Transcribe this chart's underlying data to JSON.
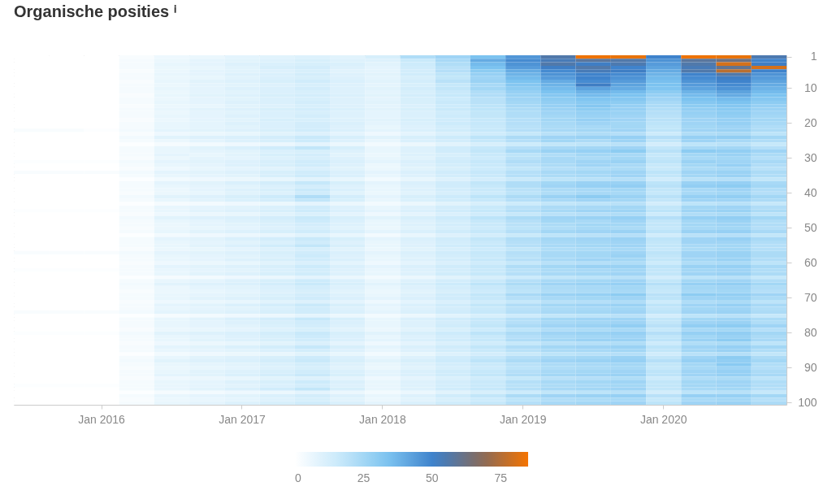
{
  "chart_data": {
    "type": "heatmap",
    "title": "Organische posities ⁱ",
    "categories": [
      null,
      null,
      "Jan 2016",
      null,
      null,
      null,
      "Jan 2017",
      null,
      null,
      null,
      "Jan 2018",
      null,
      null,
      null,
      "Jan 2019",
      null,
      null,
      null,
      "Jan 2020",
      null,
      null,
      null
    ],
    "y_categories": [
      "1",
      null,
      null,
      null,
      null,
      null,
      null,
      null,
      null,
      "10",
      null,
      null,
      null,
      null,
      null,
      null,
      null,
      null,
      null,
      "20",
      null,
      null,
      null,
      null,
      null,
      null,
      null,
      null,
      null,
      "30",
      null,
      null,
      null,
      null,
      null,
      null,
      null,
      null,
      null,
      "40",
      null,
      null,
      null,
      null,
      null,
      null,
      null,
      null,
      null,
      "50",
      null,
      null,
      null,
      null,
      null,
      null,
      null,
      null,
      null,
      "60",
      null,
      null,
      null,
      null,
      null,
      null,
      null,
      null,
      null,
      "70",
      null,
      null,
      null,
      null,
      null,
      null,
      null,
      null,
      null,
      "80",
      null,
      null,
      null,
      null,
      null,
      null,
      null,
      null,
      null,
      "90",
      null,
      null,
      null,
      null,
      null,
      null,
      null,
      null,
      null,
      "100"
    ],
    "clim": [
      0,
      85
    ],
    "cticks": [
      0,
      25,
      50,
      75
    ],
    "colors": [
      "#ffffff",
      "#c6e8fa",
      "#7cc3f0",
      "#3b7fca",
      "#866a5c",
      "#f57400"
    ],
    "cells": [
      [
        0,
        0,
        0,
        2,
        5,
        6,
        8,
        9,
        10,
        9,
        12,
        22,
        26,
        34,
        45,
        56,
        84,
        83,
        50,
        84,
        83,
        55
      ],
      [
        0,
        0,
        0,
        3,
        6,
        8,
        9,
        10,
        12,
        10,
        10,
        16,
        24,
        40,
        48,
        54,
        58,
        56,
        46,
        58,
        62,
        50
      ],
      [
        0,
        0,
        0,
        3,
        7,
        8,
        10,
        11,
        12,
        11,
        9,
        15,
        22,
        36,
        46,
        56,
        52,
        55,
        44,
        56,
        80,
        52
      ],
      [
        0,
        0,
        0,
        3,
        6,
        7,
        9,
        12,
        13,
        10,
        8,
        14,
        20,
        34,
        44,
        52,
        56,
        50,
        42,
        54,
        60,
        80
      ],
      [
        0,
        0,
        0,
        2,
        6,
        8,
        9,
        10,
        12,
        9,
        8,
        13,
        21,
        30,
        40,
        48,
        54,
        52,
        40,
        56,
        76,
        50
      ],
      [
        0,
        0,
        0,
        3,
        7,
        8,
        10,
        11,
        13,
        10,
        9,
        14,
        19,
        28,
        38,
        46,
        50,
        48,
        38,
        50,
        56,
        46
      ],
      [
        0,
        0,
        0,
        3,
        6,
        7,
        9,
        11,
        12,
        10,
        8,
        12,
        18,
        26,
        36,
        44,
        50,
        46,
        36,
        48,
        52,
        44
      ],
      [
        0,
        0,
        0,
        2,
        7,
        9,
        10,
        12,
        14,
        11,
        9,
        13,
        20,
        27,
        34,
        40,
        48,
        44,
        35,
        46,
        50,
        42
      ],
      [
        0,
        0,
        0,
        3,
        6,
        8,
        9,
        10,
        12,
        10,
        8,
        12,
        17,
        24,
        32,
        38,
        52,
        42,
        34,
        44,
        48,
        40
      ],
      [
        0,
        0,
        0,
        3,
        7,
        8,
        10,
        11,
        13,
        10,
        9,
        13,
        18,
        25,
        30,
        36,
        42,
        40,
        33,
        42,
        46,
        38
      ],
      [
        0,
        0,
        0,
        3,
        6,
        8,
        9,
        11,
        12,
        10,
        8,
        12,
        16,
        22,
        28,
        34,
        38,
        36,
        30,
        38,
        42,
        36
      ],
      [
        0,
        0,
        0,
        2,
        7,
        9,
        10,
        12,
        13,
        11,
        9,
        13,
        17,
        22,
        27,
        32,
        36,
        34,
        28,
        36,
        40,
        34
      ],
      [
        0,
        0,
        0,
        3,
        6,
        8,
        9,
        11,
        12,
        10,
        8,
        12,
        15,
        20,
        26,
        30,
        33,
        32,
        26,
        34,
        36,
        32
      ],
      [
        0,
        0,
        0,
        3,
        7,
        8,
        10,
        11,
        13,
        10,
        9,
        12,
        16,
        20,
        25,
        29,
        31,
        30,
        24,
        32,
        34,
        30
      ],
      [
        0,
        0,
        0,
        2,
        6,
        7,
        9,
        10,
        12,
        10,
        8,
        11,
        15,
        19,
        24,
        28,
        32,
        28,
        23,
        30,
        32,
        28
      ],
      [
        0,
        0,
        0,
        3,
        7,
        9,
        10,
        12,
        13,
        11,
        9,
        12,
        16,
        19,
        23,
        27,
        30,
        28,
        22,
        29,
        31,
        27
      ],
      [
        0,
        0,
        0,
        3,
        6,
        8,
        9,
        11,
        12,
        10,
        8,
        11,
        14,
        18,
        22,
        26,
        28,
        27,
        21,
        28,
        30,
        26
      ],
      [
        0,
        0,
        0,
        3,
        7,
        8,
        10,
        11,
        13,
        10,
        8,
        11,
        15,
        18,
        22,
        25,
        27,
        26,
        20,
        27,
        29,
        25
      ],
      [
        0,
        0,
        0,
        2,
        6,
        8,
        9,
        12,
        12,
        10,
        9,
        12,
        14,
        17,
        21,
        25,
        28,
        26,
        20,
        26,
        28,
        25
      ],
      [
        0,
        0,
        0,
        3,
        7,
        8,
        10,
        11,
        13,
        11,
        8,
        11,
        15,
        17,
        21,
        24,
        26,
        25,
        19,
        26,
        28,
        24
      ],
      [
        0,
        0,
        0,
        3,
        7,
        8,
        9,
        11,
        13,
        10,
        7,
        10,
        13,
        16,
        20,
        23,
        24,
        25,
        18,
        25,
        26,
        22
      ],
      [
        2,
        2,
        1,
        4,
        8,
        9,
        10,
        12,
        14,
        11,
        8,
        11,
        14,
        17,
        21,
        24,
        25,
        26,
        19,
        26,
        27,
        23
      ],
      [
        0,
        0,
        0,
        2,
        5,
        6,
        7,
        9,
        10,
        8,
        5,
        8,
        11,
        14,
        17,
        20,
        22,
        21,
        15,
        22,
        23,
        19
      ],
      [
        0,
        0,
        0,
        4,
        9,
        10,
        11,
        13,
        16,
        12,
        9,
        12,
        15,
        19,
        23,
        26,
        27,
        28,
        21,
        28,
        29,
        25
      ],
      [
        0,
        0,
        0,
        3,
        6,
        8,
        10,
        12,
        15,
        10,
        7,
        11,
        13,
        17,
        21,
        25,
        23,
        26,
        18,
        26,
        24,
        22
      ],
      [
        0,
        0,
        0,
        1,
        3,
        4,
        5,
        6,
        8,
        6,
        4,
        6,
        9,
        12,
        15,
        18,
        19,
        20,
        13,
        19,
        20,
        17
      ],
      [
        0,
        0,
        0,
        3,
        7,
        9,
        11,
        14,
        18,
        12,
        7,
        10,
        14,
        17,
        21,
        24,
        25,
        26,
        18,
        24,
        25,
        21
      ],
      [
        0,
        0,
        0,
        3,
        7,
        8,
        9,
        11,
        12,
        10,
        7,
        10,
        14,
        18,
        24,
        27,
        28,
        30,
        20,
        30,
        29,
        26
      ],
      [
        0,
        0,
        0,
        3,
        8,
        7,
        9,
        12,
        13,
        9,
        6,
        10,
        12,
        16,
        19,
        22,
        25,
        24,
        17,
        25,
        27,
        23
      ],
      [
        0,
        0,
        0,
        2,
        6,
        8,
        8,
        10,
        12,
        10,
        7,
        9,
        13,
        15,
        20,
        24,
        23,
        25,
        18,
        24,
        25,
        21
      ],
      [
        1,
        1,
        1,
        4,
        8,
        9,
        10,
        12,
        14,
        11,
        8,
        11,
        14,
        17,
        22,
        24,
        26,
        27,
        19,
        27,
        26,
        24
      ],
      [
        0,
        0,
        0,
        3,
        7,
        8,
        10,
        12,
        14,
        10,
        6,
        10,
        13,
        16,
        20,
        23,
        26,
        24,
        17,
        25,
        28,
        22
      ],
      [
        0,
        0,
        0,
        2,
        5,
        7,
        8,
        9,
        11,
        9,
        6,
        9,
        12,
        15,
        18,
        21,
        22,
        23,
        16,
        23,
        24,
        20
      ],
      [
        2,
        2,
        2,
        4,
        8,
        9,
        10,
        12,
        14,
        11,
        8,
        11,
        14,
        17,
        21,
        24,
        25,
        26,
        19,
        26,
        27,
        23
      ],
      [
        0,
        0,
        0,
        3,
        7,
        8,
        9,
        12,
        15,
        11,
        7,
        10,
        13,
        16,
        21,
        23,
        24,
        26,
        18,
        25,
        27,
        22
      ],
      [
        0,
        0,
        0,
        1,
        4,
        5,
        6,
        7,
        9,
        7,
        4,
        7,
        10,
        13,
        16,
        19,
        20,
        21,
        14,
        20,
        21,
        18
      ],
      [
        0,
        0,
        0,
        3,
        8,
        9,
        11,
        13,
        17,
        12,
        8,
        11,
        14,
        18,
        22,
        25,
        27,
        27,
        19,
        27,
        28,
        24
      ],
      [
        0,
        0,
        0,
        3,
        7,
        8,
        9,
        11,
        13,
        10,
        7,
        10,
        14,
        17,
        22,
        26,
        28,
        29,
        20,
        29,
        30,
        25
      ],
      [
        0,
        0,
        0,
        3,
        6,
        8,
        10,
        12,
        16,
        11,
        7,
        10,
        13,
        16,
        20,
        23,
        24,
        25,
        18,
        24,
        26,
        22
      ],
      [
        0,
        0,
        0,
        2,
        6,
        7,
        9,
        10,
        14,
        9,
        6,
        9,
        12,
        15,
        19,
        22,
        24,
        24,
        17,
        24,
        25,
        21
      ],
      [
        0,
        0,
        0,
        4,
        9,
        10,
        12,
        15,
        22,
        13,
        8,
        12,
        15,
        19,
        23,
        27,
        30,
        27,
        20,
        28,
        29,
        25
      ],
      [
        0,
        0,
        0,
        3,
        7,
        9,
        11,
        13,
        18,
        12,
        7,
        11,
        14,
        17,
        21,
        24,
        26,
        25,
        18,
        26,
        26,
        23
      ],
      [
        0,
        0,
        0,
        1,
        3,
        4,
        5,
        6,
        8,
        6,
        4,
        6,
        9,
        12,
        15,
        18,
        19,
        20,
        13,
        19,
        20,
        17
      ],
      [
        0,
        0,
        0,
        3,
        7,
        8,
        9,
        11,
        14,
        10,
        7,
        10,
        13,
        16,
        20,
        23,
        24,
        25,
        18,
        25,
        26,
        22
      ],
      [
        1,
        1,
        1,
        3,
        7,
        9,
        10,
        12,
        15,
        11,
        8,
        11,
        14,
        17,
        21,
        24,
        26,
        26,
        19,
        26,
        27,
        23
      ],
      [
        0,
        0,
        0,
        2,
        5,
        6,
        7,
        9,
        11,
        8,
        5,
        8,
        11,
        14,
        17,
        20,
        21,
        22,
        15,
        22,
        23,
        19
      ],
      [
        0,
        0,
        0,
        4,
        9,
        10,
        11,
        13,
        16,
        12,
        9,
        12,
        15,
        19,
        23,
        26,
        27,
        28,
        21,
        28,
        29,
        25
      ],
      [
        0,
        0,
        0,
        3,
        7,
        8,
        10,
        12,
        15,
        11,
        7,
        10,
        13,
        17,
        21,
        25,
        24,
        26,
        18,
        25,
        27,
        22
      ],
      [
        0,
        0,
        0,
        3,
        6,
        8,
        9,
        11,
        13,
        10,
        7,
        10,
        13,
        16,
        20,
        23,
        25,
        25,
        18,
        25,
        26,
        22
      ],
      [
        0,
        0,
        0,
        2,
        6,
        7,
        8,
        10,
        12,
        9,
        6,
        9,
        12,
        15,
        19,
        22,
        24,
        23,
        17,
        24,
        25,
        21
      ],
      [
        0,
        0,
        0,
        3,
        7,
        9,
        10,
        12,
        14,
        11,
        8,
        11,
        14,
        17,
        21,
        25,
        26,
        27,
        19,
        27,
        28,
        24
      ],
      [
        0,
        0,
        0,
        1,
        4,
        5,
        6,
        7,
        9,
        7,
        4,
        7,
        10,
        13,
        16,
        19,
        20,
        21,
        14,
        20,
        21,
        18
      ],
      [
        0,
        0,
        0,
        3,
        8,
        9,
        11,
        13,
        16,
        12,
        8,
        11,
        14,
        18,
        22,
        25,
        26,
        27,
        19,
        26,
        28,
        24
      ],
      [
        0,
        0,
        0,
        3,
        7,
        8,
        9,
        11,
        14,
        10,
        7,
        10,
        13,
        16,
        21,
        24,
        25,
        26,
        18,
        26,
        26,
        22
      ],
      [
        0,
        0,
        0,
        3,
        7,
        9,
        11,
        14,
        18,
        12,
        7,
        10,
        14,
        17,
        21,
        24,
        25,
        26,
        18,
        24,
        25,
        21
      ],
      [
        0,
        0,
        0,
        2,
        6,
        7,
        8,
        10,
        12,
        9,
        6,
        9,
        12,
        15,
        18,
        22,
        23,
        24,
        17,
        23,
        25,
        21
      ],
      [
        2,
        2,
        2,
        4,
        8,
        9,
        10,
        12,
        14,
        11,
        8,
        11,
        14,
        17,
        21,
        24,
        25,
        26,
        19,
        26,
        27,
        23
      ],
      [
        0,
        0,
        0,
        3,
        7,
        8,
        9,
        11,
        15,
        10,
        7,
        10,
        13,
        16,
        20,
        24,
        25,
        27,
        18,
        26,
        27,
        23
      ],
      [
        0,
        0,
        0,
        3,
        7,
        8,
        10,
        12,
        14,
        11,
        7,
        10,
        13,
        17,
        21,
        24,
        26,
        25,
        18,
        25,
        27,
        22
      ],
      [
        0,
        0,
        0,
        2,
        5,
        6,
        7,
        9,
        11,
        8,
        5,
        8,
        11,
        14,
        17,
        20,
        21,
        22,
        15,
        22,
        23,
        19
      ],
      [
        0,
        0,
        0,
        3,
        8,
        9,
        10,
        12,
        15,
        11,
        8,
        11,
        14,
        17,
        22,
        25,
        27,
        27,
        19,
        27,
        28,
        24
      ],
      [
        1,
        1,
        1,
        3,
        7,
        8,
        9,
        11,
        13,
        10,
        7,
        10,
        13,
        16,
        20,
        23,
        24,
        25,
        18,
        25,
        26,
        22
      ],
      [
        0,
        0,
        0,
        3,
        7,
        9,
        10,
        12,
        14,
        10,
        7,
        10,
        14,
        17,
        21,
        24,
        25,
        26,
        18,
        26,
        27,
        23
      ],
      [
        0,
        0,
        0,
        1,
        3,
        4,
        5,
        6,
        8,
        6,
        4,
        6,
        9,
        12,
        15,
        18,
        19,
        20,
        13,
        19,
        20,
        17
      ],
      [
        0,
        0,
        0,
        3,
        7,
        8,
        10,
        12,
        15,
        11,
        7,
        10,
        13,
        16,
        21,
        24,
        25,
        26,
        18,
        25,
        26,
        22
      ],
      [
        0,
        0,
        0,
        4,
        9,
        10,
        11,
        13,
        16,
        12,
        9,
        12,
        15,
        19,
        23,
        26,
        27,
        28,
        21,
        28,
        29,
        25
      ],
      [
        0,
        0,
        0,
        3,
        6,
        8,
        9,
        11,
        13,
        10,
        7,
        10,
        13,
        16,
        20,
        23,
        24,
        25,
        18,
        25,
        26,
        22
      ],
      [
        0,
        0,
        0,
        2,
        6,
        7,
        8,
        10,
        12,
        9,
        6,
        9,
        12,
        15,
        19,
        22,
        23,
        24,
        17,
        24,
        25,
        21
      ],
      [
        0,
        0,
        0,
        3,
        7,
        8,
        9,
        11,
        13,
        10,
        7,
        10,
        14,
        18,
        24,
        27,
        28,
        30,
        20,
        30,
        29,
        26
      ],
      [
        0,
        0,
        0,
        3,
        7,
        9,
        10,
        12,
        14,
        11,
        8,
        11,
        14,
        17,
        21,
        24,
        25,
        26,
        19,
        26,
        27,
        23
      ],
      [
        0,
        0,
        0,
        2,
        5,
        6,
        7,
        9,
        10,
        8,
        5,
        8,
        11,
        14,
        17,
        20,
        21,
        22,
        15,
        22,
        23,
        19
      ],
      [
        0,
        0,
        0,
        3,
        8,
        9,
        11,
        13,
        16,
        12,
        8,
        11,
        14,
        18,
        22,
        25,
        26,
        27,
        19,
        26,
        28,
        24
      ],
      [
        0,
        0,
        0,
        3,
        7,
        8,
        9,
        11,
        14,
        10,
        7,
        10,
        13,
        16,
        20,
        23,
        24,
        25,
        18,
        25,
        26,
        22
      ],
      [
        2,
        2,
        2,
        4,
        8,
        9,
        10,
        12,
        14,
        11,
        8,
        11,
        14,
        17,
        21,
        24,
        25,
        26,
        19,
        26,
        27,
        23
      ],
      [
        0,
        0,
        0,
        1,
        3,
        4,
        5,
        6,
        8,
        6,
        4,
        6,
        9,
        12,
        15,
        18,
        19,
        20,
        13,
        19,
        20,
        17
      ],
      [
        0,
        0,
        0,
        3,
        7,
        9,
        11,
        13,
        17,
        12,
        7,
        11,
        14,
        17,
        21,
        25,
        26,
        26,
        18,
        25,
        26,
        23
      ],
      [
        0,
        0,
        0,
        3,
        7,
        8,
        10,
        12,
        14,
        11,
        7,
        10,
        13,
        17,
        21,
        24,
        25,
        26,
        18,
        26,
        27,
        22
      ],
      [
        0,
        0,
        0,
        3,
        7,
        8,
        9,
        11,
        13,
        10,
        7,
        10,
        14,
        18,
        23,
        26,
        27,
        29,
        20,
        29,
        30,
        26
      ],
      [
        0,
        0,
        0,
        2,
        6,
        7,
        8,
        10,
        12,
        9,
        6,
        9,
        12,
        15,
        19,
        22,
        23,
        24,
        17,
        24,
        25,
        21
      ],
      [
        1,
        1,
        1,
        4,
        9,
        10,
        11,
        13,
        16,
        12,
        9,
        12,
        15,
        19,
        23,
        26,
        27,
        28,
        21,
        28,
        29,
        25
      ],
      [
        0,
        0,
        0,
        3,
        7,
        8,
        10,
        12,
        15,
        11,
        7,
        10,
        13,
        16,
        21,
        24,
        25,
        26,
        18,
        25,
        27,
        23
      ],
      [
        0,
        0,
        0,
        3,
        7,
        9,
        10,
        12,
        14,
        11,
        8,
        11,
        14,
        17,
        22,
        25,
        27,
        27,
        19,
        27,
        30,
        24
      ],
      [
        0,
        0,
        0,
        2,
        5,
        6,
        7,
        9,
        11,
        8,
        5,
        8,
        11,
        14,
        17,
        20,
        21,
        22,
        15,
        22,
        23,
        19
      ],
      [
        0,
        0,
        0,
        3,
        8,
        9,
        11,
        13,
        17,
        12,
        8,
        11,
        14,
        18,
        22,
        25,
        26,
        27,
        19,
        26,
        28,
        25
      ],
      [
        0,
        0,
        0,
        3,
        7,
        8,
        9,
        11,
        13,
        10,
        7,
        10,
        13,
        16,
        20,
        23,
        24,
        25,
        18,
        25,
        27,
        22
      ],
      [
        0,
        0,
        0,
        1,
        4,
        5,
        6,
        7,
        9,
        7,
        4,
        7,
        10,
        13,
        16,
        19,
        20,
        21,
        14,
        20,
        21,
        18
      ],
      [
        0,
        0,
        0,
        3,
        7,
        9,
        10,
        12,
        15,
        11,
        7,
        10,
        14,
        17,
        21,
        24,
        25,
        27,
        18,
        26,
        30,
        23
      ],
      [
        0,
        0,
        0,
        4,
        9,
        10,
        11,
        13,
        16,
        12,
        9,
        12,
        15,
        19,
        23,
        26,
        27,
        28,
        21,
        28,
        29,
        25
      ],
      [
        0,
        0,
        0,
        3,
        7,
        8,
        9,
        11,
        13,
        10,
        7,
        10,
        13,
        16,
        20,
        23,
        24,
        25,
        18,
        25,
        31,
        22
      ],
      [
        0,
        0,
        0,
        2,
        6,
        7,
        8,
        10,
        12,
        9,
        6,
        9,
        12,
        15,
        19,
        22,
        23,
        24,
        17,
        24,
        26,
        21
      ],
      [
        0,
        0,
        0,
        3,
        7,
        9,
        10,
        12,
        14,
        11,
        8,
        11,
        14,
        17,
        21,
        24,
        25,
        26,
        19,
        26,
        28,
        23
      ],
      [
        0,
        0,
        0,
        3,
        8,
        9,
        11,
        13,
        16,
        12,
        8,
        11,
        14,
        18,
        22,
        25,
        26,
        27,
        19,
        26,
        28,
        24
      ],
      [
        0,
        0,
        0,
        2,
        5,
        6,
        7,
        9,
        10,
        8,
        5,
        8,
        11,
        14,
        17,
        20,
        21,
        22,
        15,
        22,
        23,
        19
      ],
      [
        0,
        0,
        0,
        3,
        7,
        8,
        10,
        12,
        15,
        11,
        7,
        10,
        13,
        16,
        21,
        24,
        25,
        26,
        18,
        25,
        26,
        22
      ],
      [
        1,
        1,
        1,
        3,
        7,
        8,
        9,
        11,
        13,
        10,
        7,
        10,
        13,
        16,
        20,
        23,
        24,
        25,
        18,
        25,
        26,
        22
      ],
      [
        0,
        0,
        0,
        3,
        7,
        9,
        11,
        14,
        18,
        12,
        7,
        10,
        14,
        17,
        21,
        24,
        25,
        26,
        18,
        24,
        25,
        21
      ],
      [
        0,
        0,
        0,
        1,
        3,
        4,
        5,
        6,
        8,
        6,
        4,
        6,
        9,
        12,
        15,
        18,
        19,
        20,
        13,
        19,
        20,
        17
      ],
      [
        0,
        0,
        0,
        3,
        7,
        8,
        9,
        11,
        13,
        10,
        7,
        10,
        14,
        18,
        23,
        26,
        27,
        28,
        20,
        28,
        28,
        25
      ],
      [
        0,
        0,
        0,
        2,
        6,
        7,
        8,
        10,
        12,
        9,
        6,
        9,
        12,
        15,
        19,
        22,
        23,
        24,
        17,
        24,
        25,
        21
      ],
      [
        0,
        0,
        0,
        3,
        7,
        8,
        10,
        12,
        14,
        11,
        8,
        11,
        14,
        17,
        21,
        24,
        25,
        26,
        19,
        26,
        27,
        23
      ]
    ]
  }
}
